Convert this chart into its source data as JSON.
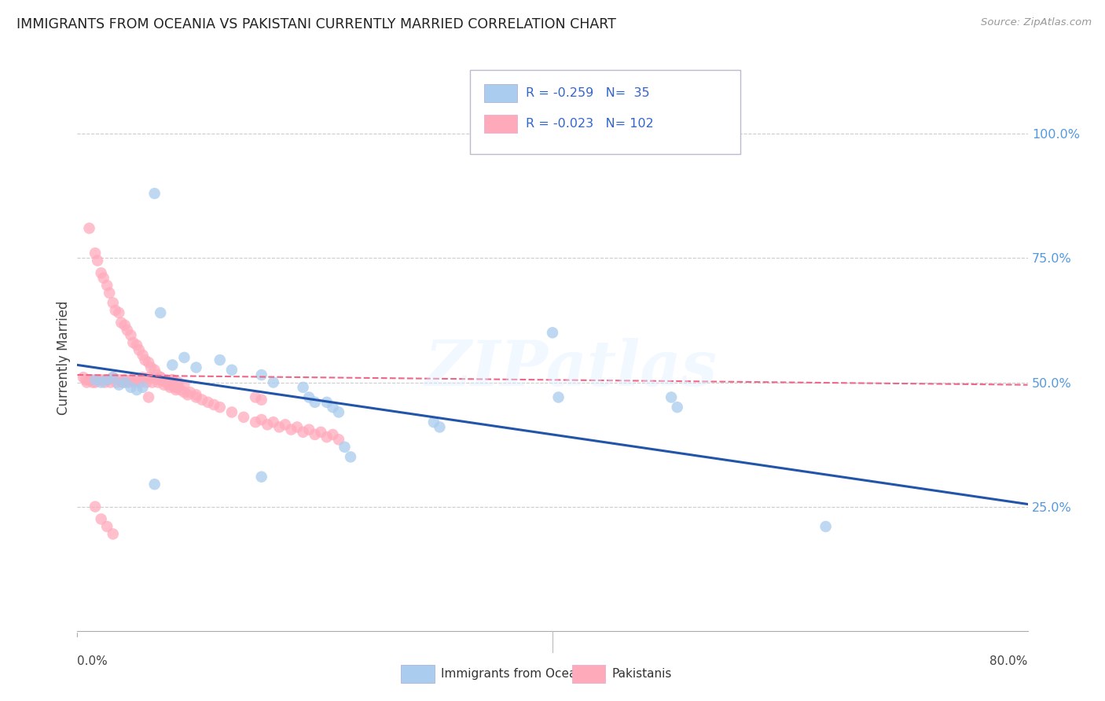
{
  "title": "IMMIGRANTS FROM OCEANIA VS PAKISTANI CURRENTLY MARRIED CORRELATION CHART",
  "source": "Source: ZipAtlas.com",
  "ylabel": "Currently Married",
  "right_yticks": [
    "100.0%",
    "75.0%",
    "50.0%",
    "25.0%"
  ],
  "right_ytick_vals": [
    1.0,
    0.75,
    0.5,
    0.25
  ],
  "legend_label1": "Immigrants from Oceania",
  "legend_label2": "Pakistanis",
  "r1": -0.259,
  "n1": 35,
  "r2": -0.023,
  "n2": 102,
  "color_blue": "#AACCEE",
  "color_pink": "#FFAABB",
  "color_blue_line": "#2255AA",
  "color_pink_line": "#EE6688",
  "watermark": "ZIPatlas",
  "xlim": [
    0.0,
    0.8
  ],
  "ylim": [
    0.0,
    1.1
  ],
  "blue_line_start_y": 0.535,
  "blue_line_end_y": 0.255,
  "pink_line_start_y": 0.515,
  "pink_line_end_y": 0.495,
  "blue_x": [
    0.015,
    0.02,
    0.025,
    0.03,
    0.035,
    0.04,
    0.045,
    0.05,
    0.055,
    0.065,
    0.07,
    0.08,
    0.09,
    0.1,
    0.12,
    0.13,
    0.155,
    0.165,
    0.19,
    0.195,
    0.2,
    0.21,
    0.215,
    0.22,
    0.225,
    0.23,
    0.3,
    0.305,
    0.4,
    0.405,
    0.5,
    0.505,
    0.63,
    0.065,
    0.155
  ],
  "blue_y": [
    0.505,
    0.5,
    0.505,
    0.51,
    0.495,
    0.5,
    0.49,
    0.485,
    0.49,
    0.88,
    0.64,
    0.535,
    0.55,
    0.53,
    0.545,
    0.525,
    0.515,
    0.5,
    0.49,
    0.47,
    0.46,
    0.46,
    0.45,
    0.44,
    0.37,
    0.35,
    0.42,
    0.41,
    0.6,
    0.47,
    0.47,
    0.45,
    0.21,
    0.295,
    0.31
  ],
  "pink_x": [
    0.005,
    0.007,
    0.008,
    0.01,
    0.01,
    0.012,
    0.013,
    0.015,
    0.015,
    0.017,
    0.018,
    0.02,
    0.02,
    0.022,
    0.023,
    0.025,
    0.025,
    0.027,
    0.028,
    0.03,
    0.03,
    0.032,
    0.033,
    0.035,
    0.035,
    0.037,
    0.038,
    0.04,
    0.04,
    0.042,
    0.043,
    0.045,
    0.045,
    0.047,
    0.048,
    0.05,
    0.05,
    0.052,
    0.053,
    0.055,
    0.055,
    0.057,
    0.058,
    0.06,
    0.06,
    0.062,
    0.063,
    0.065,
    0.065,
    0.067,
    0.068,
    0.07,
    0.07,
    0.072,
    0.073,
    0.075,
    0.075,
    0.077,
    0.078,
    0.08,
    0.08,
    0.082,
    0.083,
    0.085,
    0.085,
    0.087,
    0.09,
    0.09,
    0.093,
    0.095,
    0.1,
    0.1,
    0.105,
    0.11,
    0.115,
    0.12,
    0.13,
    0.14,
    0.15,
    0.155,
    0.16,
    0.165,
    0.17,
    0.175,
    0.18,
    0.185,
    0.19,
    0.195,
    0.2,
    0.205,
    0.21,
    0.215,
    0.22,
    0.015,
    0.02,
    0.025,
    0.03,
    0.06,
    0.07,
    0.08,
    0.15,
    0.155
  ],
  "pink_y": [
    0.51,
    0.505,
    0.5,
    0.81,
    0.505,
    0.505,
    0.5,
    0.76,
    0.5,
    0.745,
    0.505,
    0.72,
    0.505,
    0.71,
    0.5,
    0.695,
    0.505,
    0.68,
    0.5,
    0.66,
    0.51,
    0.645,
    0.5,
    0.64,
    0.505,
    0.62,
    0.5,
    0.615,
    0.505,
    0.605,
    0.5,
    0.595,
    0.505,
    0.58,
    0.5,
    0.575,
    0.505,
    0.565,
    0.5,
    0.555,
    0.51,
    0.545,
    0.5,
    0.54,
    0.51,
    0.53,
    0.5,
    0.525,
    0.51,
    0.515,
    0.5,
    0.51,
    0.505,
    0.505,
    0.495,
    0.5,
    0.505,
    0.495,
    0.49,
    0.495,
    0.505,
    0.49,
    0.485,
    0.49,
    0.5,
    0.485,
    0.48,
    0.495,
    0.475,
    0.48,
    0.47,
    0.475,
    0.465,
    0.46,
    0.455,
    0.45,
    0.44,
    0.43,
    0.42,
    0.425,
    0.415,
    0.42,
    0.41,
    0.415,
    0.405,
    0.41,
    0.4,
    0.405,
    0.395,
    0.4,
    0.39,
    0.395,
    0.385,
    0.25,
    0.225,
    0.21,
    0.195,
    0.47,
    0.51,
    0.505,
    0.47,
    0.465
  ]
}
